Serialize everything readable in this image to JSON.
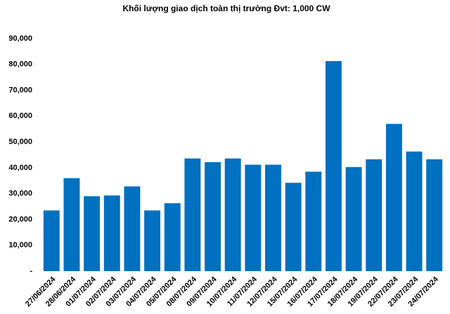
{
  "chart_data": {
    "type": "bar",
    "title": "Khối lượng giao dịch toàn thị trường Đvt: 1,000 CW",
    "categories": [
      "27/06/2024",
      "28/06/2024",
      "01/07/2024",
      "02/07/2024",
      "03/07/2024",
      "04/07/2024",
      "05/07/2024",
      "08/07/2024",
      "09/07/2024",
      "10/07/2024",
      "11/07/2024",
      "12/07/2024",
      "15/07/2024",
      "16/07/2024",
      "17/07/2024",
      "18/07/2024",
      "19/07/2024",
      "22/07/2024",
      "23/07/2024",
      "24/07/2024"
    ],
    "values": [
      23500,
      36000,
      29000,
      29300,
      32800,
      23500,
      26300,
      43600,
      42200,
      43600,
      41200,
      41200,
      34200,
      38500,
      81300,
      40300,
      43300,
      57000,
      46300,
      43300
    ],
    "color": "#0070c0",
    "ylim": [
      0,
      90000
    ],
    "yticks": [
      {
        "value": 0,
        "label": "-"
      },
      {
        "value": 10000,
        "label": "10,000"
      },
      {
        "value": 20000,
        "label": "20,000"
      },
      {
        "value": 30000,
        "label": "30,000"
      },
      {
        "value": 40000,
        "label": "40,000"
      },
      {
        "value": 50000,
        "label": "50,000"
      },
      {
        "value": 60000,
        "label": "60,000"
      },
      {
        "value": 70000,
        "label": "70,000"
      },
      {
        "value": 80000,
        "label": "80,000"
      },
      {
        "value": 90000,
        "label": "90,000"
      }
    ],
    "grid": false
  }
}
